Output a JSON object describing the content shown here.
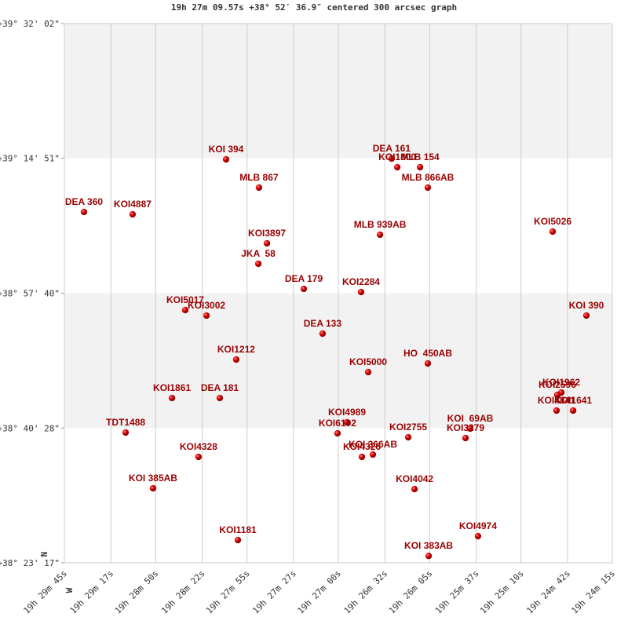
{
  "chart_data": {
    "type": "scatter",
    "title": "19h 27m 09.57s +38° 52′ 36.9″ centered 300 arcsec graph",
    "orientation_labels": {
      "north": "N",
      "west": "W"
    },
    "xlim": [
      70185,
      69855
    ],
    "ylim": [
      138197,
      142322
    ],
    "xticks": [
      {
        "value": 70185,
        "label": "19h 29m 45s"
      },
      {
        "value": 70157,
        "label": "19h 29m 17s"
      },
      {
        "value": 70130,
        "label": "19h 28m 50s"
      },
      {
        "value": 70102,
        "label": "19h 28m 22s"
      },
      {
        "value": 70075,
        "label": "19h 27m 55s"
      },
      {
        "value": 70047,
        "label": "19h 27m 27s"
      },
      {
        "value": 70020,
        "label": "19h 27m 00s"
      },
      {
        "value": 69992,
        "label": "19h 26m 32s"
      },
      {
        "value": 69965,
        "label": "19h 26m 05s"
      },
      {
        "value": 69937,
        "label": "19h 25m 37s"
      },
      {
        "value": 69910,
        "label": "19h 25m 10s"
      },
      {
        "value": 69882,
        "label": "19h 24m 42s"
      },
      {
        "value": 69855,
        "label": "19h 24m 15s"
      }
    ],
    "yticks": [
      {
        "value": 142322,
        "label": "+39° 32' 02\""
      },
      {
        "value": 141291,
        "label": "+39° 14' 51\""
      },
      {
        "value": 140260,
        "label": "+38° 57' 40\""
      },
      {
        "value": 139228,
        "label": "+38° 40' 28\""
      },
      {
        "value": 138197,
        "label": "+38° 23' 17\""
      }
    ],
    "band_color": "#f2f2f2",
    "series": [
      {
        "color": "#cc0000",
        "labels": [
          "KOI 394",
          "DEA 161",
          "KOI1800",
          "MLB 154",
          "MLB 867",
          "MLB 866AB",
          "DEA 360",
          "KOI4887",
          "KOI5026",
          "MLB 939AB",
          "KOI3897",
          "JKA  58",
          "DEA 179",
          "KOI2284",
          "KOI5017",
          "KOI3002",
          "KOI 390",
          "DEA 133",
          "KOI1212",
          "HO  450AB",
          "KOI5000",
          "KOI1962",
          "KOI2596",
          "KOI4841",
          "KOI1641",
          "KOI1861",
          "DEA 181",
          "KOI4989",
          "KOI6102",
          "TDT1488",
          "KOI  69AB",
          "KOI3279",
          "KOI2755",
          "KOI 366AB",
          "KOI4326",
          "KOI4328",
          "KOI 385AB",
          "KOI4042",
          "KOI4974",
          "KOI1181",
          "KOI 383AB"
        ],
        "x": [
          70087.6,
          69987.9,
          69984.5,
          69970.8,
          70067.8,
          69966.1,
          70173.2,
          70143.9,
          69890.9,
          69994.9,
          70063.0,
          70068.2,
          70040.8,
          70006.3,
          70112.2,
          70099.4,
          69870.6,
          70029.5,
          70081.5,
          69966.1,
          70002.0,
          69885.7,
          69888.1,
          69888.6,
          69878.6,
          70120.2,
          70091.4,
          70014.8,
          70020.5,
          70148.1,
          69940.6,
          69943.4,
          69977.9,
          69999.2,
          70005.8,
          70104.2,
          70131.6,
          69974.1,
          69935.9,
          70080.5,
          69965.6
        ],
        "values": [
          141283.2,
          141289.2,
          141223.2,
          141223.2,
          141067.1,
          141067.1,
          140880.9,
          140862.9,
          140730.8,
          140706.8,
          140640.8,
          140484.7,
          140292.5,
          140268.5,
          140130.4,
          140088.4,
          140088.4,
          139950.3,
          139752.1,
          139722.1,
          139656.0,
          139499.9,
          139481.9,
          139361.8,
          139361.8,
          139457.9,
          139457.9,
          139271.8,
          139187.7,
          139193.7,
          139223.7,
          139151.7,
          139157.7,
          139025.6,
          139007.6,
          139007.6,
          138767.4,
          138761.4,
          138401.1,
          138371.1,
          138250.0
        ]
      }
    ]
  }
}
